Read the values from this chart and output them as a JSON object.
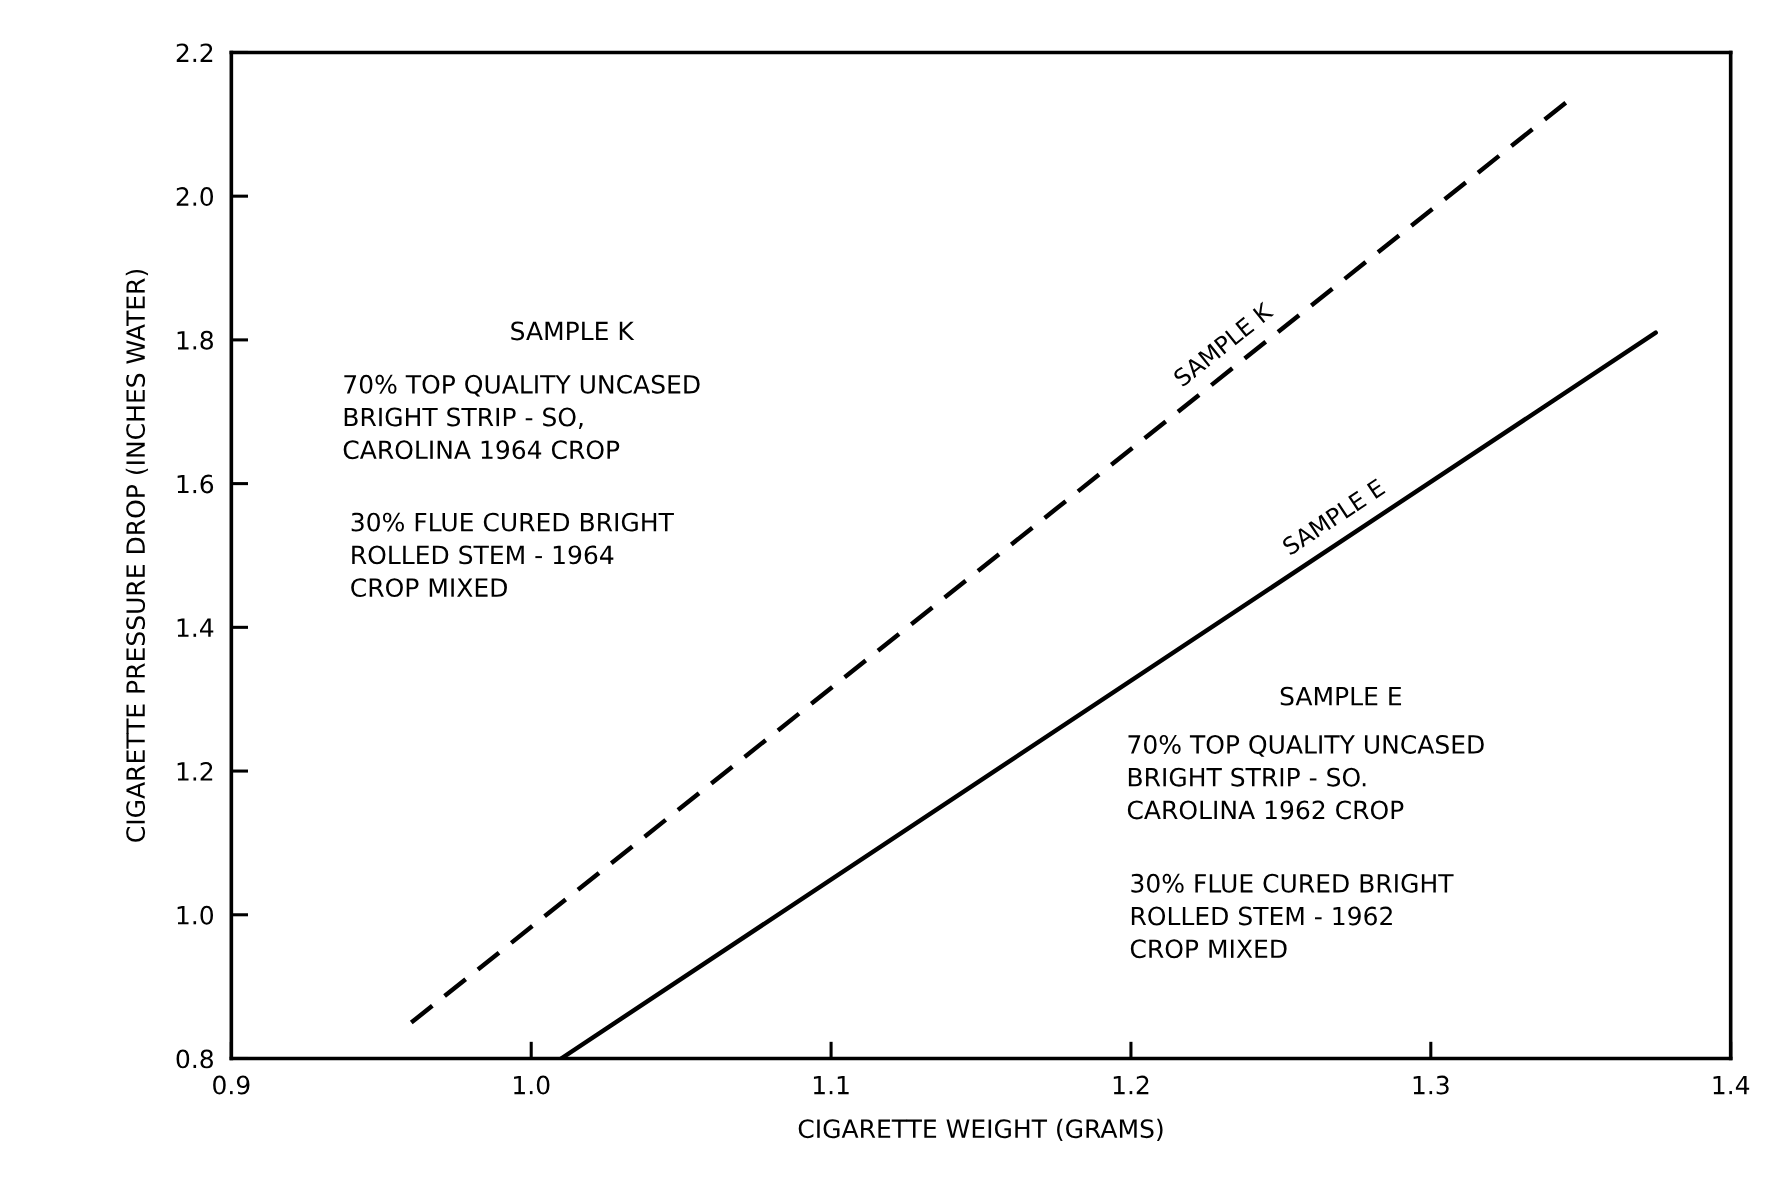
{
  "chart_data": {
    "type": "line",
    "xlabel": "CIGARETTE WEIGHT (GRAMS)",
    "ylabel": "CIGARETTE PRESSURE DROP (INCHES WATER)",
    "xlim": [
      0.9,
      1.4
    ],
    "ylim": [
      0.8,
      2.2
    ],
    "xticks": [
      0.9,
      {
        "value": 1,
        "label": "1.0"
      },
      1.1,
      1.2,
      1.3,
      1.4
    ],
    "yticks": [
      0.8,
      {
        "value": 1,
        "label": "1.0"
      },
      1.2,
      1.4,
      1.6,
      1.8,
      {
        "value": 2,
        "label": "2.0"
      },
      2.2
    ],
    "series": [
      {
        "name": "SAMPLE K",
        "color": "#000000",
        "line_style": "dashed",
        "x": [
          0.96,
          1.345
        ],
        "values": [
          0.85,
          2.13
        ]
      },
      {
        "name": "SAMPLE E",
        "color": "#000000",
        "line_style": "solid",
        "x": [
          1.01,
          1.375
        ],
        "values": [
          0.8,
          1.81
        ]
      }
    ],
    "annotations": [
      "SAMPLE K",
      "70% TOP QUALITY UNCASED\nBRIGHT STRIP - SO,\nCAROLINA 1964 CROP",
      "30% FLUE CURED BRIGHT\nROLLED STEM - 1964\nCROP MIXED",
      "SAMPLE E",
      "70% TOP QUALITY UNCASED\nBRIGHT STRIP - SO.\nCAROLINA 1962 CROP",
      "30% FLUE CURED BRIGHT\nROLLED STEM - 1962\nCROP MIXED"
    ]
  }
}
